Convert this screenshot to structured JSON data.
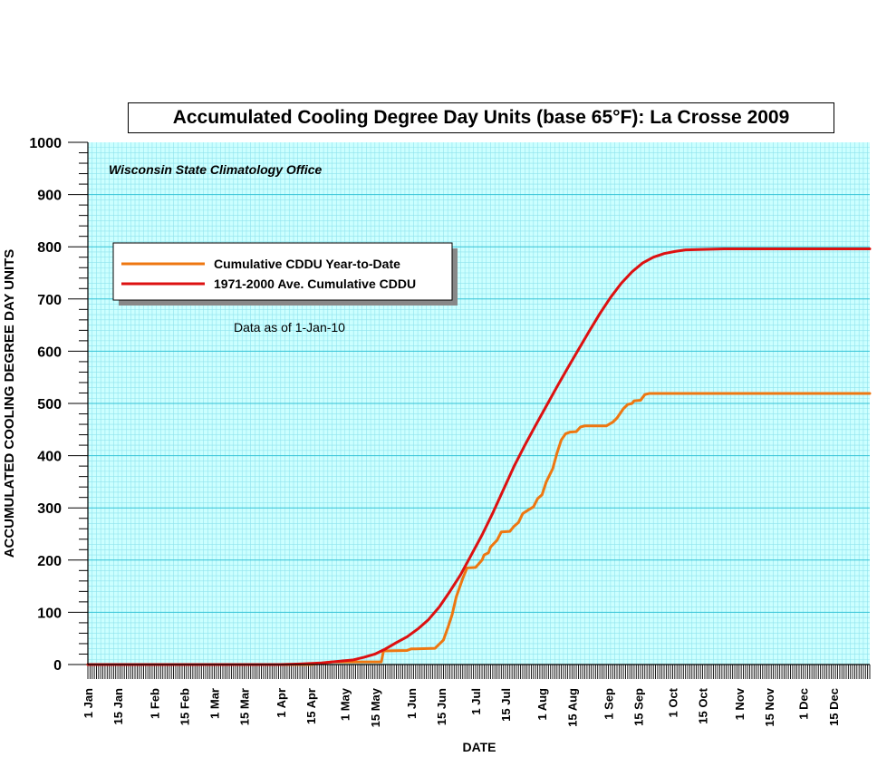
{
  "chart_data": {
    "type": "line",
    "title": "Accumulated Cooling Degree Day Units (base 65°F): La Crosse 2009",
    "subtitle": "Wisconsin State Climatology Office",
    "note": "Data as of 1-Jan-10",
    "xlabel": "DATE",
    "ylabel": "ACCUMULATED COOLING DEGREE DAY UNITS",
    "ylim": [
      0,
      1000
    ],
    "yticks": [
      0,
      100,
      200,
      300,
      400,
      500,
      600,
      700,
      800,
      900,
      1000
    ],
    "xlim": [
      "2009-01-01",
      "2010-01-01"
    ],
    "xtick_labels": [
      {
        "label": "1 Jan",
        "date": "2009-01-01"
      },
      {
        "label": "15 Jan",
        "date": "2009-01-15"
      },
      {
        "label": "1 Feb",
        "date": "2009-02-01"
      },
      {
        "label": "15 Feb",
        "date": "2009-02-15"
      },
      {
        "label": "1 Mar",
        "date": "2009-03-01"
      },
      {
        "label": "15 Mar",
        "date": "2009-03-15"
      },
      {
        "label": "1 Apr",
        "date": "2009-04-01"
      },
      {
        "label": "15 Apr",
        "date": "2009-04-15"
      },
      {
        "label": "1 May",
        "date": "2009-05-01"
      },
      {
        "label": "15 May",
        "date": "2009-05-15"
      },
      {
        "label": "1 Jun",
        "date": "2009-06-01"
      },
      {
        "label": "15 Jun",
        "date": "2009-06-15"
      },
      {
        "label": "1 Jul",
        "date": "2009-07-01"
      },
      {
        "label": "15 Jul",
        "date": "2009-07-15"
      },
      {
        "label": "1 Aug",
        "date": "2009-08-01"
      },
      {
        "label": "15 Aug",
        "date": "2009-08-15"
      },
      {
        "label": "1 Sep",
        "date": "2009-09-01"
      },
      {
        "label": "15 Sep",
        "date": "2009-09-15"
      },
      {
        "label": "1 Oct",
        "date": "2009-10-01"
      },
      {
        "label": "15 Oct",
        "date": "2009-10-15"
      },
      {
        "label": "1 Nov",
        "date": "2009-11-01"
      },
      {
        "label": "15 Nov",
        "date": "2009-11-15"
      },
      {
        "label": "1 Dec",
        "date": "2009-12-01"
      },
      {
        "label": "15 Dec",
        "date": "2009-12-15"
      }
    ],
    "grid": true,
    "legend_position": "upper-left",
    "colors": {
      "plot_background": "#ccffff",
      "minor_grid": "#8fe3ee",
      "major_grid": "#33c2d6",
      "ytd": "#ee7711",
      "normal": "#dd1111"
    },
    "series": [
      {
        "name": "Cumulative CDDU Year-to-Date",
        "color": "#ee7711",
        "points": [
          [
            "2009-01-01",
            0
          ],
          [
            "2009-04-15",
            0
          ],
          [
            "2009-04-25",
            5
          ],
          [
            "2009-05-18",
            5
          ],
          [
            "2009-05-19",
            26
          ],
          [
            "2009-05-30",
            27
          ],
          [
            "2009-06-01",
            30
          ],
          [
            "2009-06-03",
            30
          ],
          [
            "2009-06-12",
            31
          ],
          [
            "2009-06-16",
            47
          ],
          [
            "2009-06-18",
            70
          ],
          [
            "2009-06-20",
            95
          ],
          [
            "2009-06-22",
            130
          ],
          [
            "2009-06-25",
            165
          ],
          [
            "2009-06-27",
            185
          ],
          [
            "2009-07-01",
            186
          ],
          [
            "2009-07-04",
            200
          ],
          [
            "2009-07-05",
            210
          ],
          [
            "2009-07-07",
            214
          ],
          [
            "2009-07-08",
            225
          ],
          [
            "2009-07-11",
            238
          ],
          [
            "2009-07-13",
            254
          ],
          [
            "2009-07-17",
            255
          ],
          [
            "2009-07-19",
            265
          ],
          [
            "2009-07-21",
            272
          ],
          [
            "2009-07-23",
            289
          ],
          [
            "2009-07-26",
            297
          ],
          [
            "2009-07-28",
            302
          ],
          [
            "2009-07-30",
            318
          ],
          [
            "2009-08-01",
            325
          ],
          [
            "2009-08-03",
            350
          ],
          [
            "2009-08-06",
            375
          ],
          [
            "2009-08-08",
            405
          ],
          [
            "2009-08-10",
            430
          ],
          [
            "2009-08-12",
            442
          ],
          [
            "2009-08-14",
            445
          ],
          [
            "2009-08-17",
            446
          ],
          [
            "2009-08-19",
            455
          ],
          [
            "2009-08-21",
            457
          ],
          [
            "2009-08-24",
            457
          ],
          [
            "2009-08-31",
            457
          ],
          [
            "2009-09-03",
            464
          ],
          [
            "2009-09-05",
            472
          ],
          [
            "2009-09-08",
            490
          ],
          [
            "2009-09-10",
            498
          ],
          [
            "2009-09-12",
            500
          ],
          [
            "2009-09-13",
            505
          ],
          [
            "2009-09-16",
            506
          ],
          [
            "2009-09-18",
            517
          ],
          [
            "2009-09-20",
            519
          ],
          [
            "2009-10-15",
            519
          ],
          [
            "2010-01-01",
            519
          ]
        ]
      },
      {
        "name": "1971-2000 Ave. Cumulative CDDU",
        "color": "#dd1111",
        "points": [
          [
            "2009-01-01",
            0
          ],
          [
            "2009-04-01",
            0
          ],
          [
            "2009-04-10",
            1
          ],
          [
            "2009-04-20",
            3
          ],
          [
            "2009-04-30",
            7
          ],
          [
            "2009-05-05",
            9
          ],
          [
            "2009-05-10",
            14
          ],
          [
            "2009-05-15",
            20
          ],
          [
            "2009-05-20",
            30
          ],
          [
            "2009-05-25",
            42
          ],
          [
            "2009-05-30",
            53
          ],
          [
            "2009-06-04",
            68
          ],
          [
            "2009-06-09",
            86
          ],
          [
            "2009-06-14",
            110
          ],
          [
            "2009-06-19",
            140
          ],
          [
            "2009-06-24",
            172
          ],
          [
            "2009-06-29",
            210
          ],
          [
            "2009-07-04",
            248
          ],
          [
            "2009-07-09",
            290
          ],
          [
            "2009-07-14",
            335
          ],
          [
            "2009-07-19",
            380
          ],
          [
            "2009-07-24",
            420
          ],
          [
            "2009-07-29",
            458
          ],
          [
            "2009-08-03",
            495
          ],
          [
            "2009-08-08",
            532
          ],
          [
            "2009-08-13",
            568
          ],
          [
            "2009-08-18",
            603
          ],
          [
            "2009-08-23",
            638
          ],
          [
            "2009-08-28",
            672
          ],
          [
            "2009-09-02",
            703
          ],
          [
            "2009-09-07",
            730
          ],
          [
            "2009-09-12",
            752
          ],
          [
            "2009-09-17",
            769
          ],
          [
            "2009-09-22",
            780
          ],
          [
            "2009-09-27",
            787
          ],
          [
            "2009-10-02",
            791
          ],
          [
            "2009-10-07",
            794
          ],
          [
            "2009-10-15",
            795
          ],
          [
            "2009-10-25",
            796
          ],
          [
            "2010-01-01",
            796
          ]
        ]
      }
    ]
  }
}
